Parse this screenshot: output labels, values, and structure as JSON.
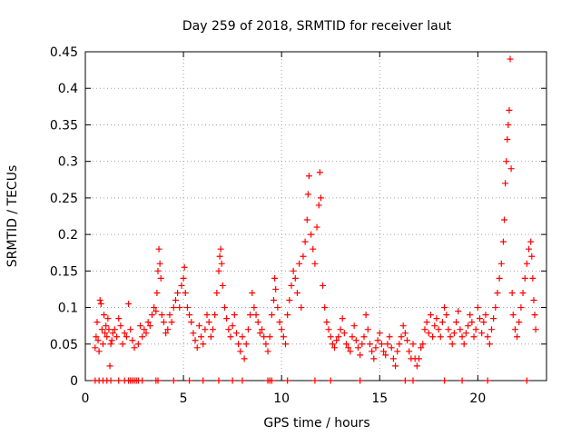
{
  "chart_data": {
    "type": "scatter",
    "title": "Day 259 of 2018, SRMTID for receiver laut",
    "xlabel": "GPS time / hours",
    "ylabel": "SRMTID / TECUs",
    "xlim": [
      0,
      23.5
    ],
    "ylim": [
      0,
      0.45
    ],
    "xticks": [
      0,
      5,
      10,
      15,
      20
    ],
    "xtick_labels": [
      "0",
      "5",
      "10",
      "15",
      "20"
    ],
    "yticks": [
      0,
      0.05,
      0.1,
      0.15,
      0.2,
      0.25,
      0.3,
      0.35,
      0.4,
      0.45
    ],
    "ytick_labels": [
      "0",
      "0.05",
      "0.1",
      "0.15",
      "0.2",
      "0.25",
      "0.3",
      "0.35",
      "0.4",
      "0.45"
    ],
    "grid": true,
    "marker": "+",
    "series_color": "#ff0000",
    "series": [
      {
        "name": "SRMTID",
        "points": [
          [
            0.5,
            0.045
          ],
          [
            0.55,
            0.06
          ],
          [
            0.6,
            0.08
          ],
          [
            0.65,
            0.055
          ],
          [
            0.7,
            0.04
          ],
          [
            0.75,
            0.11
          ],
          [
            0.8,
            0.105
          ],
          [
            0.85,
            0.07
          ],
          [
            0.9,
            0.05
          ],
          [
            0.95,
            0.09
          ],
          [
            1.0,
            0.065
          ],
          [
            1.05,
            0.075
          ],
          [
            1.1,
            0.06
          ],
          [
            1.15,
            0.085
          ],
          [
            1.2,
            0.07
          ],
          [
            1.25,
            0.02
          ],
          [
            1.3,
            0.05
          ],
          [
            1.35,
            0.055
          ],
          [
            1.4,
            0.065
          ],
          [
            1.5,
            0.07
          ],
          [
            1.6,
            0.06
          ],
          [
            1.7,
            0.085
          ],
          [
            1.8,
            0.075
          ],
          [
            1.9,
            0.05
          ],
          [
            2.0,
            0.065
          ],
          [
            2.1,
            0.06
          ],
          [
            2.2,
            0.105
          ],
          [
            2.3,
            0.07
          ],
          [
            2.4,
            0.055
          ],
          [
            2.5,
            0.045
          ],
          [
            2.7,
            0.05
          ],
          [
            2.8,
            0.075
          ],
          [
            2.9,
            0.06
          ],
          [
            3.0,
            0.07
          ],
          [
            3.1,
            0.065
          ],
          [
            3.2,
            0.08
          ],
          [
            3.3,
            0.075
          ],
          [
            3.4,
            0.09
          ],
          [
            3.5,
            0.1
          ],
          [
            3.6,
            0.095
          ],
          [
            3.65,
            0.12
          ],
          [
            3.7,
            0.15
          ],
          [
            3.75,
            0.18
          ],
          [
            3.8,
            0.16
          ],
          [
            3.85,
            0.14
          ],
          [
            3.9,
            0.09
          ],
          [
            4.0,
            0.08
          ],
          [
            4.1,
            0.065
          ],
          [
            4.2,
            0.07
          ],
          [
            4.3,
            0.09
          ],
          [
            4.4,
            0.08
          ],
          [
            4.5,
            0.1
          ],
          [
            4.6,
            0.11
          ],
          [
            4.7,
            0.12
          ],
          [
            4.8,
            0.1
          ],
          [
            4.9,
            0.13
          ],
          [
            5.0,
            0.14
          ],
          [
            5.05,
            0.155
          ],
          [
            5.1,
            0.12
          ],
          [
            5.2,
            0.1
          ],
          [
            5.3,
            0.09
          ],
          [
            5.4,
            0.08
          ],
          [
            5.5,
            0.065
          ],
          [
            5.6,
            0.055
          ],
          [
            5.7,
            0.045
          ],
          [
            5.8,
            0.075
          ],
          [
            5.9,
            0.06
          ],
          [
            6.0,
            0.05
          ],
          [
            6.1,
            0.07
          ],
          [
            6.2,
            0.09
          ],
          [
            6.3,
            0.08
          ],
          [
            6.4,
            0.06
          ],
          [
            6.5,
            0.07
          ],
          [
            6.6,
            0.09
          ],
          [
            6.7,
            0.12
          ],
          [
            6.8,
            0.15
          ],
          [
            6.85,
            0.17
          ],
          [
            6.9,
            0.18
          ],
          [
            6.95,
            0.16
          ],
          [
            7.0,
            0.13
          ],
          [
            7.1,
            0.1
          ],
          [
            7.2,
            0.085
          ],
          [
            7.3,
            0.07
          ],
          [
            7.4,
            0.06
          ],
          [
            7.5,
            0.075
          ],
          [
            7.6,
            0.09
          ],
          [
            7.7,
            0.065
          ],
          [
            7.8,
            0.05
          ],
          [
            7.9,
            0.04
          ],
          [
            8.0,
            0.06
          ],
          [
            8.1,
            0.03
          ],
          [
            8.2,
            0.05
          ],
          [
            8.3,
            0.07
          ],
          [
            8.4,
            0.09
          ],
          [
            8.5,
            0.12
          ],
          [
            8.6,
            0.1
          ],
          [
            8.7,
            0.09
          ],
          [
            8.8,
            0.08
          ],
          [
            8.9,
            0.065
          ],
          [
            9.0,
            0.07
          ],
          [
            9.1,
            0.06
          ],
          [
            9.2,
            0.05
          ],
          [
            9.3,
            0.04
          ],
          [
            9.4,
            0.06
          ],
          [
            9.5,
            0.09
          ],
          [
            9.6,
            0.11
          ],
          [
            9.65,
            0.14
          ],
          [
            9.7,
            0.125
          ],
          [
            9.8,
            0.1
          ],
          [
            9.9,
            0.08
          ],
          [
            10.0,
            0.07
          ],
          [
            10.1,
            0.06
          ],
          [
            10.2,
            0.05
          ],
          [
            10.3,
            0.09
          ],
          [
            10.4,
            0.11
          ],
          [
            10.5,
            0.13
          ],
          [
            10.6,
            0.15
          ],
          [
            10.7,
            0.14
          ],
          [
            10.8,
            0.12
          ],
          [
            10.9,
            0.16
          ],
          [
            11.0,
            0.1
          ],
          [
            11.1,
            0.17
          ],
          [
            11.2,
            0.19
          ],
          [
            11.3,
            0.22
          ],
          [
            11.35,
            0.255
          ],
          [
            11.4,
            0.28
          ],
          [
            11.5,
            0.2
          ],
          [
            11.6,
            0.18
          ],
          [
            11.7,
            0.16
          ],
          [
            11.8,
            0.21
          ],
          [
            11.9,
            0.24
          ],
          [
            11.95,
            0.285
          ],
          [
            12.0,
            0.25
          ],
          [
            12.1,
            0.13
          ],
          [
            12.2,
            0.1
          ],
          [
            12.3,
            0.08
          ],
          [
            12.4,
            0.07
          ],
          [
            12.5,
            0.06
          ],
          [
            12.6,
            0.05
          ],
          [
            12.7,
            0.045
          ],
          [
            12.8,
            0.055
          ],
          [
            12.9,
            0.06
          ],
          [
            13.0,
            0.07
          ],
          [
            13.1,
            0.085
          ],
          [
            13.2,
            0.065
          ],
          [
            13.3,
            0.05
          ],
          [
            13.4,
            0.045
          ],
          [
            13.5,
            0.04
          ],
          [
            13.6,
            0.06
          ],
          [
            13.7,
            0.075
          ],
          [
            13.8,
            0.055
          ],
          [
            13.9,
            0.045
          ],
          [
            14.0,
            0.035
          ],
          [
            14.1,
            0.05
          ],
          [
            14.2,
            0.06
          ],
          [
            14.3,
            0.09
          ],
          [
            14.4,
            0.07
          ],
          [
            14.5,
            0.05
          ],
          [
            14.6,
            0.04
          ],
          [
            14.7,
            0.03
          ],
          [
            14.8,
            0.045
          ],
          [
            14.9,
            0.055
          ],
          [
            15.0,
            0.065
          ],
          [
            15.1,
            0.05
          ],
          [
            15.2,
            0.04
          ],
          [
            15.3,
            0.035
          ],
          [
            15.4,
            0.05
          ],
          [
            15.5,
            0.06
          ],
          [
            15.6,
            0.045
          ],
          [
            15.7,
            0.03
          ],
          [
            15.8,
            0.02
          ],
          [
            15.9,
            0.04
          ],
          [
            16.0,
            0.05
          ],
          [
            16.1,
            0.06
          ],
          [
            16.2,
            0.075
          ],
          [
            16.3,
            0.065
          ],
          [
            16.4,
            0.055
          ],
          [
            16.5,
            0.04
          ],
          [
            16.6,
            0.03
          ],
          [
            16.7,
            0.05
          ],
          [
            16.8,
            0.03
          ],
          [
            16.9,
            0.02
          ],
          [
            17.0,
            0.03
          ],
          [
            17.1,
            0.045
          ],
          [
            17.2,
            0.05
          ],
          [
            17.3,
            0.07
          ],
          [
            17.4,
            0.08
          ],
          [
            17.5,
            0.065
          ],
          [
            17.6,
            0.09
          ],
          [
            17.7,
            0.06
          ],
          [
            17.8,
            0.075
          ],
          [
            17.9,
            0.085
          ],
          [
            18.0,
            0.07
          ],
          [
            18.1,
            0.06
          ],
          [
            18.2,
            0.08
          ],
          [
            18.3,
            0.1
          ],
          [
            18.4,
            0.09
          ],
          [
            18.5,
            0.07
          ],
          [
            18.6,
            0.06
          ],
          [
            18.7,
            0.05
          ],
          [
            18.8,
            0.065
          ],
          [
            18.9,
            0.08
          ],
          [
            19.0,
            0.095
          ],
          [
            19.1,
            0.07
          ],
          [
            19.2,
            0.06
          ],
          [
            19.3,
            0.05
          ],
          [
            19.4,
            0.065
          ],
          [
            19.5,
            0.075
          ],
          [
            19.6,
            0.09
          ],
          [
            19.7,
            0.08
          ],
          [
            19.8,
            0.06
          ],
          [
            19.9,
            0.07
          ],
          [
            20.0,
            0.1
          ],
          [
            20.1,
            0.085
          ],
          [
            20.2,
            0.065
          ],
          [
            20.3,
            0.08
          ],
          [
            20.4,
            0.09
          ],
          [
            20.5,
            0.06
          ],
          [
            20.6,
            0.05
          ],
          [
            20.7,
            0.07
          ],
          [
            20.8,
            0.085
          ],
          [
            20.9,
            0.1
          ],
          [
            21.0,
            0.12
          ],
          [
            21.1,
            0.14
          ],
          [
            21.2,
            0.16
          ],
          [
            21.3,
            0.19
          ],
          [
            21.35,
            0.22
          ],
          [
            21.4,
            0.27
          ],
          [
            21.45,
            0.3
          ],
          [
            21.5,
            0.33
          ],
          [
            21.55,
            0.35
          ],
          [
            21.6,
            0.37
          ],
          [
            21.65,
            0.44
          ],
          [
            21.7,
            0.29
          ],
          [
            21.75,
            0.12
          ],
          [
            21.8,
            0.09
          ],
          [
            21.9,
            0.07
          ],
          [
            22.0,
            0.06
          ],
          [
            22.1,
            0.08
          ],
          [
            22.2,
            0.1
          ],
          [
            22.3,
            0.12
          ],
          [
            22.4,
            0.14
          ],
          [
            22.5,
            0.16
          ],
          [
            22.6,
            0.18
          ],
          [
            22.7,
            0.19
          ],
          [
            22.75,
            0.17
          ],
          [
            22.8,
            0.14
          ],
          [
            22.85,
            0.11
          ],
          [
            22.9,
            0.09
          ],
          [
            22.95,
            0.07
          ]
        ]
      }
    ],
    "zero_points_x": [
      0.5,
      0.7,
      0.9,
      1.1,
      1.3,
      1.7,
      2.0,
      2.2,
      2.3,
      2.4,
      2.5,
      2.6,
      2.7,
      2.9,
      3.6,
      3.7,
      4.5,
      5.3,
      6.0,
      6.8,
      7.5,
      8.0,
      9.3,
      9.4,
      9.5,
      10.3,
      11.7,
      12.5,
      14.0,
      16.3,
      16.7,
      18.3,
      19.2,
      20.5,
      22.5
    ]
  }
}
